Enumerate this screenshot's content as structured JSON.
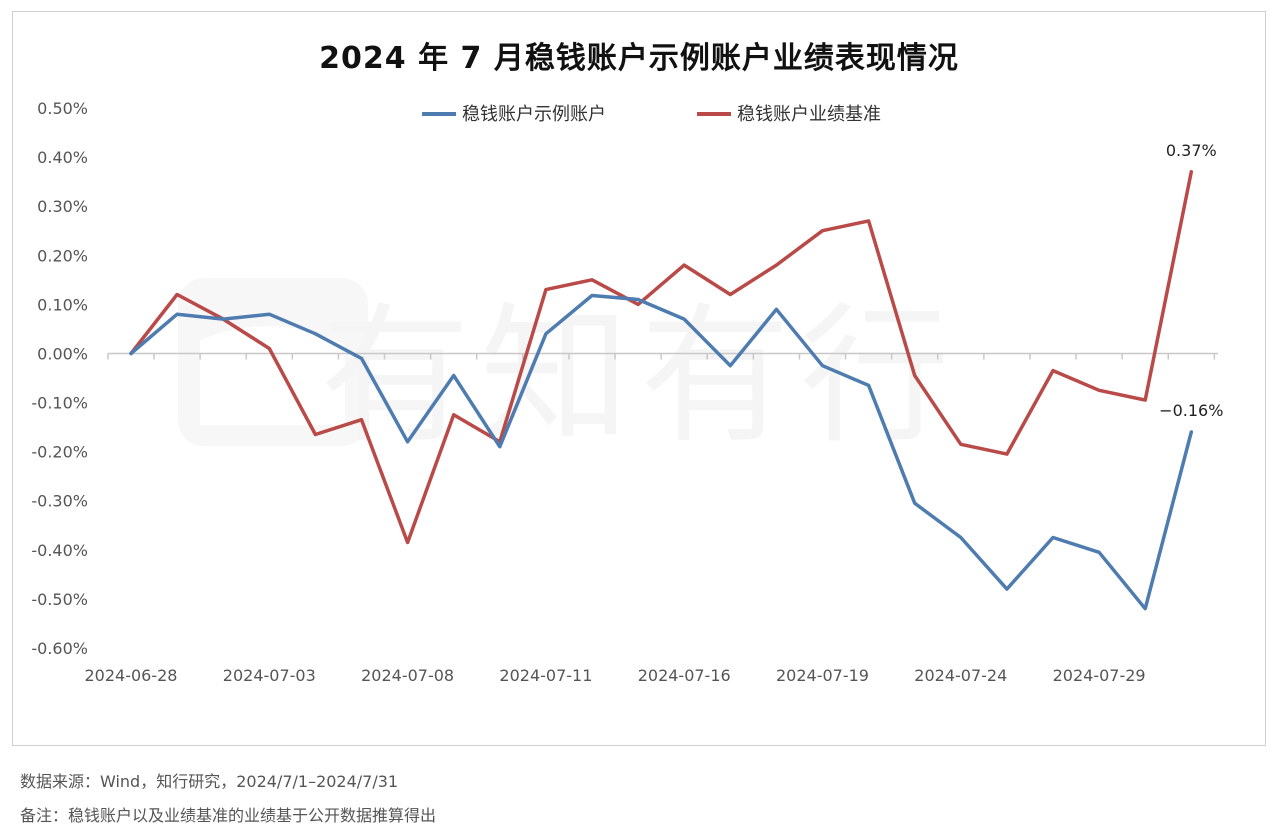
{
  "chart_data": {
    "type": "line",
    "title": "2024 年 7 月稳钱账户示例账户业绩表现情况",
    "xlabel": "",
    "ylabel": "",
    "ylim": [
      -0.6,
      0.5
    ],
    "yticks": [
      "0.50%",
      "0.40%",
      "0.30%",
      "0.20%",
      "0.10%",
      "0.00%",
      "-0.10%",
      "-0.20%",
      "-0.30%",
      "-0.40%",
      "-0.50%",
      "-0.60%"
    ],
    "ytick_values": [
      0.5,
      0.4,
      0.3,
      0.2,
      0.1,
      0.0,
      -0.1,
      -0.2,
      -0.3,
      -0.4,
      -0.5,
      -0.6
    ],
    "x": [
      "2024-06-28",
      "2024-07-01",
      "2024-07-02",
      "2024-07-03",
      "2024-07-04",
      "2024-07-05",
      "2024-07-08",
      "2024-07-09",
      "2024-07-10",
      "2024-07-11",
      "2024-07-12",
      "2024-07-15",
      "2024-07-16",
      "2024-07-17",
      "2024-07-18",
      "2024-07-19",
      "2024-07-22",
      "2024-07-23",
      "2024-07-24",
      "2024-07-25",
      "2024-07-26",
      "2024-07-29",
      "2024-07-30",
      "2024-07-31"
    ],
    "xtick_labels": [
      "2024-06-28",
      "2024-07-03",
      "2024-07-08",
      "2024-07-11",
      "2024-07-16",
      "2024-07-19",
      "2024-07-24",
      "2024-07-29"
    ],
    "xtick_indices": [
      0,
      3,
      6,
      9,
      12,
      15,
      18,
      21
    ],
    "grid": false,
    "legend": "top-center",
    "series": [
      {
        "name": "稳钱账户示例账户",
        "color": "#4e7cb0",
        "values": [
          0.0,
          0.08,
          0.07,
          0.08,
          0.04,
          -0.01,
          -0.18,
          -0.045,
          -0.19,
          0.04,
          0.118,
          0.11,
          0.07,
          -0.025,
          0.09,
          -0.025,
          -0.065,
          -0.305,
          -0.375,
          -0.48,
          -0.375,
          -0.405,
          -0.52,
          -0.16
        ]
      },
      {
        "name": "稳钱账户业绩基准",
        "color": "#b94a48",
        "values": [
          0.0,
          0.12,
          0.07,
          0.01,
          -0.165,
          -0.135,
          -0.385,
          -0.125,
          -0.18,
          0.13,
          0.15,
          0.1,
          0.18,
          0.12,
          0.18,
          0.25,
          0.27,
          -0.045,
          -0.185,
          -0.205,
          -0.035,
          -0.075,
          -0.095,
          0.37
        ]
      }
    ],
    "annotations": [
      {
        "text": "0.37%",
        "series": 1,
        "index": 23
      },
      {
        "text": "−0.16%",
        "series": 0,
        "index": 23
      }
    ],
    "watermark": "有知有行"
  },
  "footer": {
    "source": "数据来源：Wind，知行研究，2024/7/1–2024/7/31",
    "note": "备注：稳钱账户以及业绩基准的业绩基于公开数据推算得出"
  }
}
